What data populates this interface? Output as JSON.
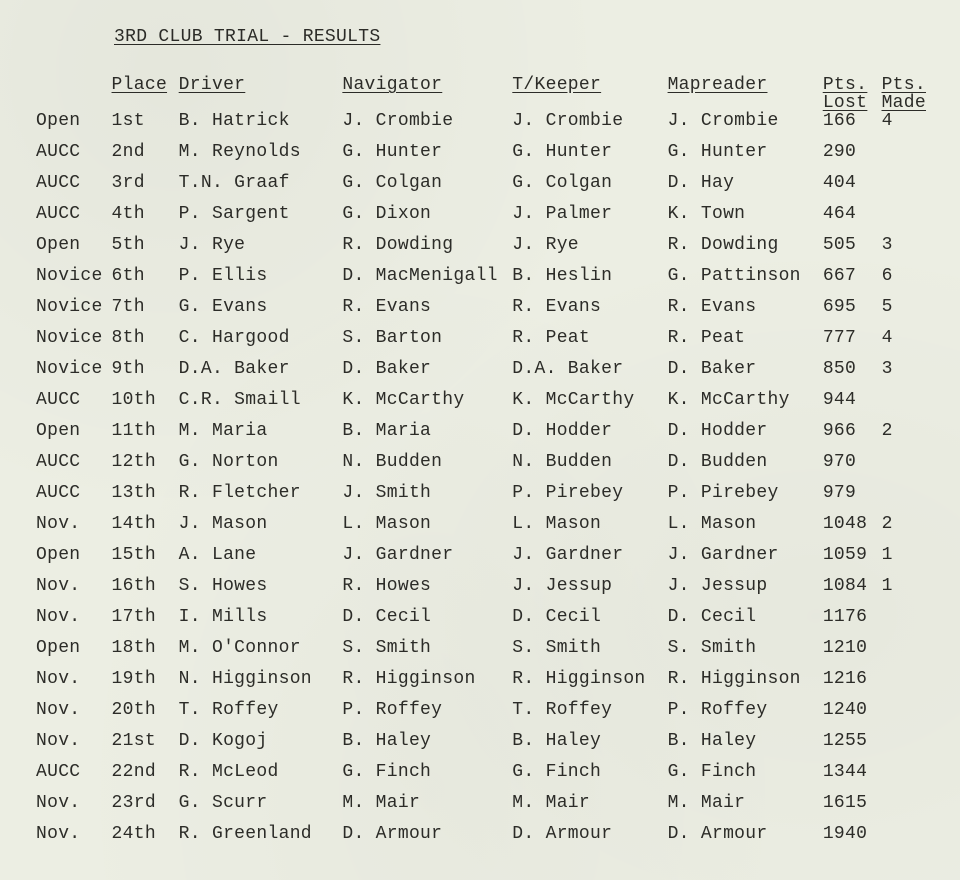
{
  "title": "3RD CLUB TRIAL - RESULTS",
  "headers": {
    "place": "Place",
    "driver": "Driver",
    "navigator": "Navigator",
    "tkeeper": "T/Keeper",
    "mapreader": "Mapreader",
    "pts_lost": "Pts.\nLost",
    "pts_made": "Pts.\nMade"
  },
  "rows": [
    {
      "cat": "Open",
      "place": "1st",
      "driver": "B. Hatrick",
      "nav": "J. Crombie",
      "tk": "J. Crombie",
      "mr": "J. Crombie",
      "lost": "166",
      "made": "4"
    },
    {
      "cat": "AUCC",
      "place": "2nd",
      "driver": "M. Reynolds",
      "nav": "G. Hunter",
      "tk": "G. Hunter",
      "mr": "G. Hunter",
      "lost": "290",
      "made": ""
    },
    {
      "cat": "AUCC",
      "place": "3rd",
      "driver": "T.N. Graaf",
      "nav": "G. Colgan",
      "tk": "G. Colgan",
      "mr": "D. Hay",
      "lost": "404",
      "made": ""
    },
    {
      "cat": "AUCC",
      "place": "4th",
      "driver": "P. Sargent",
      "nav": "G. Dixon",
      "tk": "J. Palmer",
      "mr": "K. Town",
      "lost": "464",
      "made": ""
    },
    {
      "cat": "Open",
      "place": "5th",
      "driver": "J. Rye",
      "nav": "R. Dowding",
      "tk": "J. Rye",
      "mr": "R. Dowding",
      "lost": "505",
      "made": "3"
    },
    {
      "cat": "Novice",
      "place": "6th",
      "driver": "P. Ellis",
      "nav": "D. MacMenigall",
      "tk": "B. Heslin",
      "mr": "G. Pattinson",
      "lost": "667",
      "made": "6"
    },
    {
      "cat": "Novice",
      "place": "7th",
      "driver": "G. Evans",
      "nav": "R. Evans",
      "tk": "R. Evans",
      "mr": "R. Evans",
      "lost": "695",
      "made": "5"
    },
    {
      "cat": "Novice",
      "place": "8th",
      "driver": "C. Hargood",
      "nav": "S. Barton",
      "tk": "R. Peat",
      "mr": "R. Peat",
      "lost": "777",
      "made": "4"
    },
    {
      "cat": "Novice",
      "place": "9th",
      "driver": "D.A. Baker",
      "nav": "D. Baker",
      "tk": "D.A. Baker",
      "mr": "D. Baker",
      "lost": "850",
      "made": "3"
    },
    {
      "cat": "AUCC",
      "place": "10th",
      "driver": "C.R. Smaill",
      "nav": "K. McCarthy",
      "tk": "K. McCarthy",
      "mr": "K. McCarthy",
      "lost": "944",
      "made": ""
    },
    {
      "cat": "Open",
      "place": "11th",
      "driver": "M. Maria",
      "nav": "B. Maria",
      "tk": "D. Hodder",
      "mr": "D. Hodder",
      "lost": "966",
      "made": "2"
    },
    {
      "cat": "AUCC",
      "place": "12th",
      "driver": "G. Norton",
      "nav": "N. Budden",
      "tk": "N. Budden",
      "mr": "D. Budden",
      "lost": "970",
      "made": ""
    },
    {
      "cat": "AUCC",
      "place": "13th",
      "driver": "R. Fletcher",
      "nav": "J. Smith",
      "tk": "P. Pirebey",
      "mr": "P. Pirebey",
      "lost": "979",
      "made": ""
    },
    {
      "cat": "Nov.",
      "place": "14th",
      "driver": "J. Mason",
      "nav": "L. Mason",
      "tk": "L. Mason",
      "mr": "L. Mason",
      "lost": "1048",
      "made": "2"
    },
    {
      "cat": "Open",
      "place": "15th",
      "driver": "A. Lane",
      "nav": "J. Gardner",
      "tk": "J. Gardner",
      "mr": "J. Gardner",
      "lost": "1059",
      "made": "1"
    },
    {
      "cat": "Nov.",
      "place": "16th",
      "driver": "S. Howes",
      "nav": "R. Howes",
      "tk": "J. Jessup",
      "mr": "J. Jessup",
      "lost": "1084",
      "made": "1"
    },
    {
      "cat": "Nov.",
      "place": "17th",
      "driver": "I. Mills",
      "nav": "D. Cecil",
      "tk": "D. Cecil",
      "mr": "D. Cecil",
      "lost": "1176",
      "made": ""
    },
    {
      "cat": "Open",
      "place": "18th",
      "driver": "M. O'Connor",
      "nav": "S. Smith",
      "tk": "S. Smith",
      "mr": "S. Smith",
      "lost": "1210",
      "made": ""
    },
    {
      "cat": "Nov.",
      "place": "19th",
      "driver": "N. Higginson",
      "nav": "R. Higginson",
      "tk": "R. Higginson",
      "mr": "R. Higginson",
      "lost": "1216",
      "made": ""
    },
    {
      "cat": "Nov.",
      "place": "20th",
      "driver": "T. Roffey",
      "nav": "P. Roffey",
      "tk": "T. Roffey",
      "mr": "P. Roffey",
      "lost": "1240",
      "made": ""
    },
    {
      "cat": "Nov.",
      "place": "21st",
      "driver": "D. Kogoj",
      "nav": "B. Haley",
      "tk": "B. Haley",
      "mr": "B. Haley",
      "lost": "1255",
      "made": ""
    },
    {
      "cat": "AUCC",
      "place": "22nd",
      "driver": "R. McLeod",
      "nav": "G. Finch",
      "tk": "G. Finch",
      "mr": "G. Finch",
      "lost": "1344",
      "made": ""
    },
    {
      "cat": "Nov.",
      "place": "23rd",
      "driver": "G. Scurr",
      "nav": "M. Mair",
      "tk": "M. Mair",
      "mr": "M. Mair",
      "lost": "1615",
      "made": ""
    },
    {
      "cat": "Nov.",
      "place": "24th",
      "driver": "R. Greenland",
      "nav": "D. Armour",
      "tk": "D. Armour",
      "mr": "D. Armour",
      "lost": "1940",
      "made": ""
    }
  ]
}
